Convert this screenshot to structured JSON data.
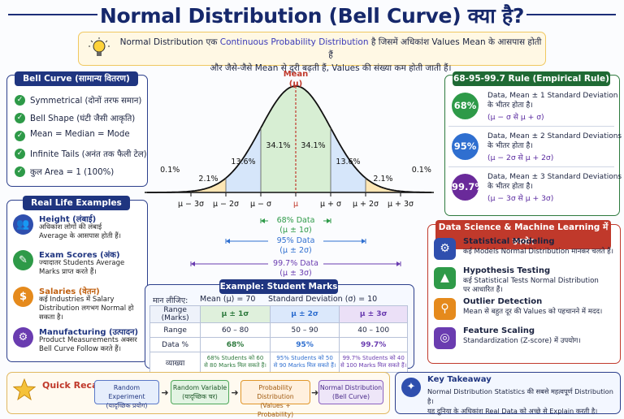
{
  "title": "Normal Distribution (Bell Curve) क्या है?",
  "intro": {
    "line1_a": "Normal Distribution एक ",
    "line1_b": "Continuous Probability Distribution",
    "line1_c": " है जिसमें अधिकांश Values Mean के आसपास होती हैं",
    "line2": "और जैसे-जैसे Mean से दूरी बढ़ती हैं, Values की संख्या कम होती जाती हैं।"
  },
  "bell_card": {
    "header": "Bell Curve (सामान्य वितरण)",
    "items": [
      "Symmetrical (दोनों तरफ समान)",
      "Bell Shape (घंटी जैसी आकृति)",
      "Mean = Median = Mode",
      "Infinite Tails (अनंत तक फैली टेल)",
      "कुल Area = 1 (100%)"
    ]
  },
  "examples_card": {
    "header": "Real Life Examples",
    "items": [
      {
        "title": "Height (लंबाई)",
        "desc": [
          "अधिकांश लोगों की लंबाई",
          "Average के आसपास होती हैं।"
        ],
        "color": "#2f4fae",
        "icon": "👥"
      },
      {
        "title": "Exam Scores (अंक)",
        "desc": [
          "ज्यादातर Students Average",
          "Marks प्राप्त करते हैं।"
        ],
        "color": "#2e9a48",
        "icon": "✎"
      },
      {
        "title": "Salaries (वेतन)",
        "desc": [
          "कई Industries में Salary",
          "Distribution लगभग Normal हो",
          "सकता है।"
        ],
        "color": "#e58a1c",
        "icon": "$"
      },
      {
        "title": "Manufacturing (उत्पादन)",
        "desc": [
          "Product Measurements अक्सर",
          "Bell Curve Follow करते हैं।"
        ],
        "color": "#6a3cb0",
        "icon": "⚙"
      }
    ]
  },
  "curve": {
    "mean_label": "Mean",
    "mu": "(μ)",
    "region_labels": [
      "0.1%",
      "2.1%",
      "13.6%",
      "34.1%",
      "34.1%",
      "13.6%",
      "2.1%",
      "0.1%"
    ],
    "ticks": [
      "μ − 3σ",
      "μ − 2σ",
      "μ − σ",
      "μ",
      "μ + σ",
      "μ + 2σ",
      "μ + 3σ"
    ],
    "ranges": [
      {
        "label": "68% Data",
        "sub": "(μ ± 1σ)",
        "color": "#2e9a48"
      },
      {
        "label": "95% Data",
        "sub": "(μ ± 2σ)",
        "color": "#2f6fd0"
      },
      {
        "label": "99.7% Data",
        "sub": "(μ ± 3σ)",
        "color": "#6a3cb0"
      }
    ]
  },
  "rule_card": {
    "header": "68-95-99.7 Rule  (Empirical Rule)",
    "items": [
      {
        "pct": "68%",
        "line1": "Data, Mean ± 1 Standard Deviation",
        "line2": "के भीतर होता है।",
        "formula": "(μ − σ  से   μ + σ)",
        "color": "#2e9a48"
      },
      {
        "pct": "95%",
        "line1": "Data, Mean ± 2 Standard Deviations",
        "line2": "के भीतर होता है।",
        "formula": "(μ − 2σ  से   μ + 2σ)",
        "color": "#2f6fd0"
      },
      {
        "pct": "99.7%",
        "line1": "Data, Mean ± 3 Standard Deviations",
        "line2": "के भीतर होता है।",
        "formula": "(μ − 3σ  से   μ + 3σ)",
        "color": "#6a2a9a"
      }
    ]
  },
  "ds_card": {
    "header": "Data Science & Machine Learning में उपयोग",
    "items": [
      {
        "title": "Statistical Modeling",
        "desc": [
          "कई Models Normal Distribution मानकर चलते हैं।"
        ],
        "color": "#2f4fae",
        "icon": "⚙"
      },
      {
        "title": "Hypothesis Testing",
        "desc": [
          "कई Statistical Tests Normal Distribution",
          "पर आधारित हैं।"
        ],
        "color": "#2e9a48",
        "icon": "▲"
      },
      {
        "title": "Outlier Detection",
        "desc": [
          "Mean से बहुत दूर की Values को पहचानने में मदद।"
        ],
        "color": "#e58a1c",
        "icon": "⚲"
      },
      {
        "title": "Feature Scaling",
        "desc": [
          "Standardization (Z-score) में उपयोग।"
        ],
        "color": "#6a3cb0",
        "icon": "◎"
      }
    ]
  },
  "example": {
    "header": "Example: Student Marks",
    "assume": "मान लीजिए:",
    "mean": "Mean (μ) = 70",
    "sd": "Standard Deviation (σ) = 10",
    "cols": [
      "Range (Marks)",
      "μ ± 1σ",
      "μ ± 2σ",
      "μ ± 3σ"
    ],
    "rows": [
      [
        "Range",
        "60 – 80",
        "50 – 90",
        "40 – 100"
      ],
      [
        "Data %",
        "68%",
        "95%",
        "99.7%"
      ]
    ],
    "explain_label": "व्याख्या",
    "explain": [
      [
        "68% Students को 60",
        "से 80 Marks मिल सकते हैं।"
      ],
      [
        "95% Students को 50",
        "से 90 Marks मिल सकते हैं।"
      ],
      [
        "99.7% Students को 40",
        "से 100 Marks मिल सकते हैं।"
      ]
    ]
  },
  "recap": {
    "title": "Quick Recap",
    "steps": [
      {
        "a": "Random Experiment",
        "b": "(यादृच्छिक प्रयोग)",
        "bg": "#e6eefc",
        "bd": "#5a78c8",
        "fg": "#1f3580"
      },
      {
        "a": "Random Variable",
        "b": "(यादृच्छिक चर)",
        "bg": "#e3f4e3",
        "bd": "#4ea85a",
        "fg": "#1f5a2a"
      },
      {
        "a": "Probability Distribution",
        "b": "(Values + Probability)",
        "bg": "#fff0de",
        "bd": "#e0962a",
        "fg": "#a05a10"
      },
      {
        "a": "Normal Distribution",
        "b": "(Bell Curve)",
        "bg": "#eee6f8",
        "bd": "#8a60c0",
        "fg": "#4a2a8a"
      }
    ]
  },
  "takeaway": {
    "title": "Key Takeaway",
    "line1": "Normal Distribution Statistics की सबसे महत्वपूर्ण Distribution है।",
    "line2": "यह दुनिया के अधिकांश Real Data को अच्छे से Explain करती है।"
  },
  "colors": {
    "navy": "#1f3580",
    "green": "#2e9a48",
    "blue": "#2f6fd0",
    "purple": "#6a3cb0",
    "orange": "#e58a1c",
    "red": "#c0392b"
  }
}
